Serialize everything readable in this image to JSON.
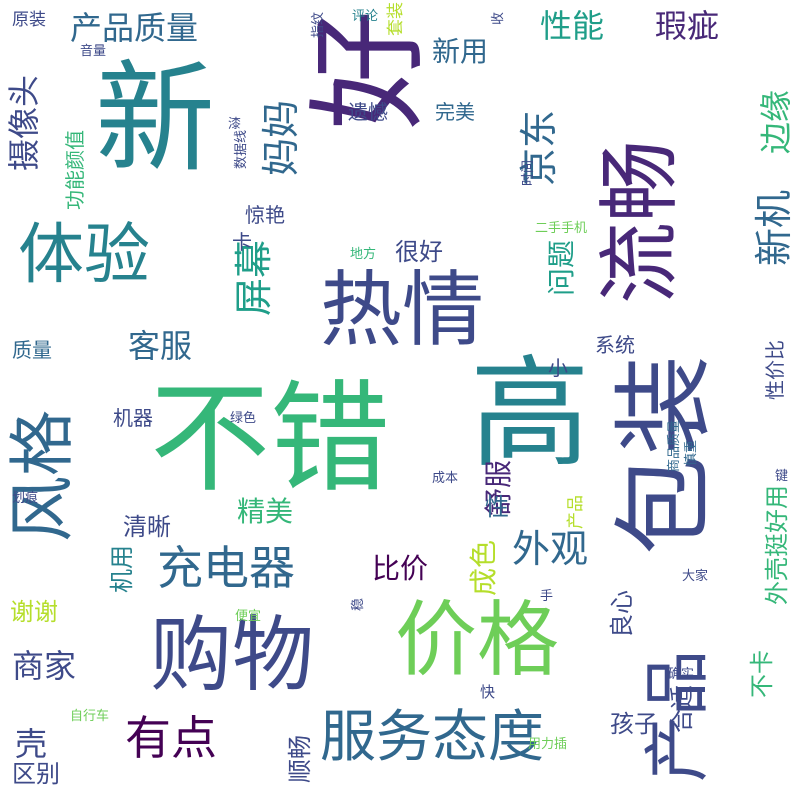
{
  "palette": {
    "background": "#ffffff",
    "viridis": [
      "#440154",
      "#482878",
      "#3e4a89",
      "#31688e",
      "#26828e",
      "#1f9e89",
      "#35b779",
      "#6ece58",
      "#b5de2b",
      "#fde725"
    ]
  },
  "words": [
    {
      "text": "好"
    },
    {
      "text": "新"
    },
    {
      "text": "不错"
    },
    {
      "text": "高"
    },
    {
      "text": "包装"
    },
    {
      "text": "热情"
    },
    {
      "text": "流畅"
    },
    {
      "text": "购物"
    },
    {
      "text": "价格"
    },
    {
      "text": "产品"
    },
    {
      "text": "风格"
    },
    {
      "text": "体验"
    },
    {
      "text": "服务态度"
    },
    {
      "text": "充电器"
    },
    {
      "text": "有点"
    },
    {
      "text": "新机"
    },
    {
      "text": "屏幕"
    },
    {
      "text": "外观"
    },
    {
      "text": "京东"
    },
    {
      "text": "妈妈"
    },
    {
      "text": "客服"
    },
    {
      "text": "商家"
    },
    {
      "text": "摄像头"
    },
    {
      "text": "产品质量"
    },
    {
      "text": "性能"
    },
    {
      "text": "瑕疵"
    },
    {
      "text": "边缘"
    },
    {
      "text": "新用"
    },
    {
      "text": "问题"
    },
    {
      "text": "舒服"
    },
    {
      "text": "比价"
    },
    {
      "text": "成色"
    },
    {
      "text": "精美"
    },
    {
      "text": "清晰"
    },
    {
      "text": "机用"
    },
    {
      "text": "谢谢"
    },
    {
      "text": "区别"
    },
    {
      "text": "顺畅"
    },
    {
      "text": "孩子"
    },
    {
      "text": "良心"
    },
    {
      "text": "外壳挺好用"
    },
    {
      "text": "不卡"
    },
    {
      "text": "合适"
    },
    {
      "text": "壳"
    },
    {
      "text": "很好"
    },
    {
      "text": "遗憾"
    },
    {
      "text": "完美"
    },
    {
      "text": "惊艳"
    },
    {
      "text": "功能颜值"
    },
    {
      "text": "质量"
    },
    {
      "text": "机器"
    },
    {
      "text": "性价比"
    },
    {
      "text": "系统"
    },
    {
      "text": "小"
    },
    {
      "text": "卡"
    },
    {
      "text": "性"
    },
    {
      "text": "产品"
    },
    {
      "text": "原装"
    },
    {
      "text": "音量"
    },
    {
      "text": "评论"
    },
    {
      "text": "套装"
    },
    {
      "text": "收"
    },
    {
      "text": "指纹"
    },
    {
      "text": "漆"
    },
    {
      "text": "数据线"
    },
    {
      "text": "时间"
    },
    {
      "text": "二手手机"
    },
    {
      "text": "地方"
    },
    {
      "text": "绿色"
    },
    {
      "text": "成本"
    },
    {
      "text": "商品质量"
    },
    {
      "text": "慎重"
    },
    {
      "text": "键"
    },
    {
      "text": "划痕"
    },
    {
      "text": "大家"
    },
    {
      "text": "手"
    },
    {
      "text": "便宜"
    },
    {
      "text": "稳"
    },
    {
      "text": "确实"
    },
    {
      "text": "快"
    },
    {
      "text": "用力插"
    },
    {
      "text": "自行车"
    }
  ]
}
